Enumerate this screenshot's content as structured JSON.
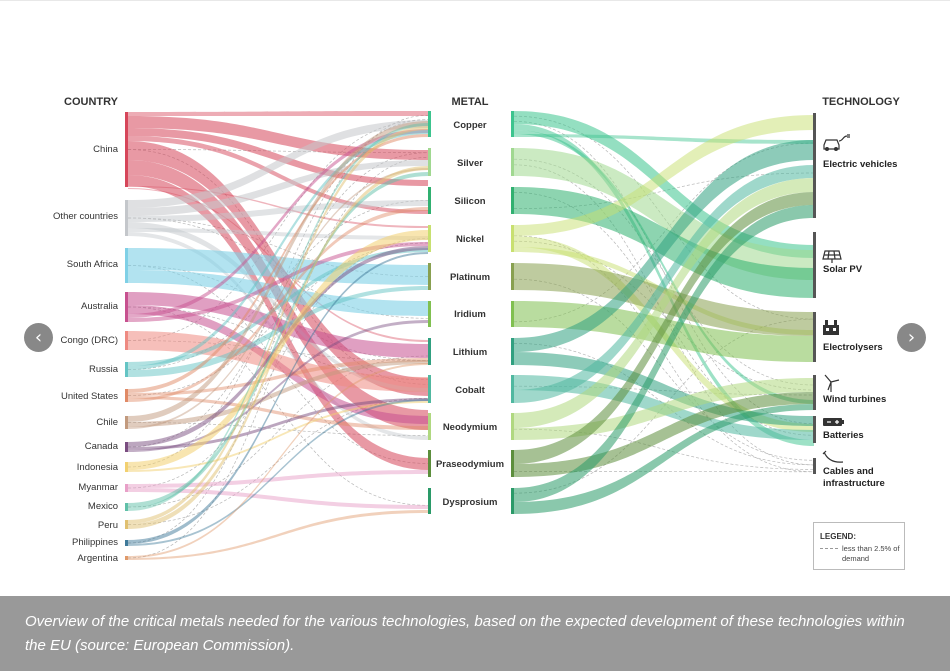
{
  "headers": {
    "country": "COUNTRY",
    "metal": "METAL",
    "technology": "TECHNOLOGY"
  },
  "countries": [
    {
      "label": "China",
      "color": "#d6465a"
    },
    {
      "label": "Other countries",
      "color": "#c4c7cb"
    },
    {
      "label": "South Africa",
      "color": "#7fd0e6"
    },
    {
      "label": "Australia",
      "color": "#c7518f"
    },
    {
      "label": "Congo (DRC)",
      "color": "#ee8a82"
    },
    {
      "label": "Russia",
      "color": "#64c4c4"
    },
    {
      "label": "United States",
      "color": "#e08a66"
    },
    {
      "label": "Chile",
      "color": "#c29a7e"
    },
    {
      "label": "Canada",
      "color": "#7a4d80"
    },
    {
      "label": "Indonesia",
      "color": "#f2d070"
    },
    {
      "label": "Myanmar",
      "color": "#e8a0c8"
    },
    {
      "label": "Mexico",
      "color": "#60c0a8"
    },
    {
      "label": "Peru",
      "color": "#e0c070"
    },
    {
      "label": "Philippines",
      "color": "#3f7a9a"
    },
    {
      "label": "Argentina",
      "color": "#e09a6a"
    }
  ],
  "metals": [
    {
      "label": "Copper",
      "color": "#3cc48e"
    },
    {
      "label": "Silver",
      "color": "#a0d890"
    },
    {
      "label": "Silicon",
      "color": "#30b070"
    },
    {
      "label": "Nickel",
      "color": "#c8e070"
    },
    {
      "label": "Platinum",
      "color": "#88a050"
    },
    {
      "label": "Iridium",
      "color": "#80c050"
    },
    {
      "label": "Lithium",
      "color": "#30a080"
    },
    {
      "label": "Cobalt",
      "color": "#50b8a0"
    },
    {
      "label": "Neodymium",
      "color": "#b0d880"
    },
    {
      "label": "Praseodymium",
      "color": "#5c8e3c"
    },
    {
      "label": "Dysprosium",
      "color": "#2a9a68"
    }
  ],
  "technologies": [
    {
      "label_lines": [
        "Electric vehicles"
      ],
      "icon": "car-icon"
    },
    {
      "label_lines": [
        "Solar PV"
      ],
      "icon": "solar-panel-icon"
    },
    {
      "label_lines": [
        "Electrolysers"
      ],
      "icon": "electrolyser-icon"
    },
    {
      "label_lines": [
        "Wind turbines"
      ],
      "icon": "wind-turbine-icon"
    },
    {
      "label_lines": [
        "Batteries"
      ],
      "icon": "battery-icon"
    },
    {
      "label_lines": [
        "Cables and",
        "infrastructure"
      ],
      "icon": "cable-icon"
    }
  ],
  "legend": {
    "title": "LEGEND:",
    "text": "less than 2.5% of demand"
  },
  "caption": "Overview of the critical metals needed for the various technologies, based on the expected development of these technologies within the EU (source: European Commission).",
  "nav": {
    "prev_icon": "chevron-left-icon",
    "next_icon": "chevron-right-icon"
  }
}
